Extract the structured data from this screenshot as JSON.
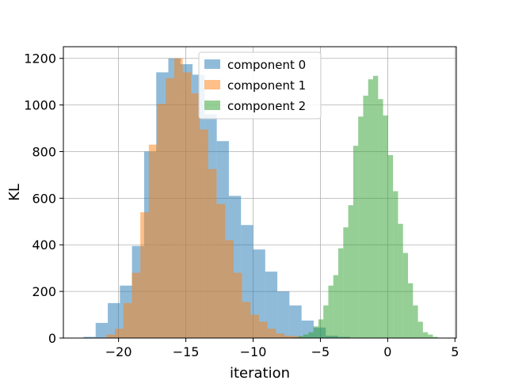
{
  "chart_data": {
    "type": "bar",
    "subtype": "overlaid-histogram",
    "title": "",
    "xlabel": "iteration",
    "ylabel": "KL",
    "xlim": [
      -24.1,
      5.1
    ],
    "ylim": [
      0,
      1250
    ],
    "xticks": [
      -20,
      -15,
      -10,
      -5,
      0,
      5
    ],
    "yticks": [
      0,
      200,
      400,
      600,
      800,
      1000,
      1200
    ],
    "grid": true,
    "legend_position": "top-center",
    "series": [
      {
        "name": "component 0",
        "color": "#1f77b4",
        "opacity": 0.5,
        "bin_width": 0.9,
        "bin_edges_start": -22.6,
        "values": [
          5,
          65,
          150,
          225,
          395,
          800,
          1140,
          1200,
          1175,
          1130,
          960,
          845,
          610,
          485,
          380,
          285,
          200,
          140,
          75,
          45,
          10,
          5
        ]
      },
      {
        "name": "component 1",
        "color": "#ff7f0e",
        "opacity": 0.5,
        "bin_width": 0.63,
        "bin_edges_start": -20.9,
        "values": [
          15,
          40,
          150,
          280,
          540,
          830,
          1005,
          1115,
          1200,
          1140,
          1050,
          895,
          725,
          575,
          420,
          280,
          155,
          100,
          70,
          40,
          20,
          10,
          8
        ]
      },
      {
        "name": "component 2",
        "color": "#2ca02c",
        "opacity": 0.5,
        "bin_width": 0.37,
        "bin_edges_start": -7.0,
        "values": [
          3,
          8,
          15,
          25,
          50,
          80,
          140,
          225,
          270,
          385,
          475,
          570,
          825,
          950,
          1040,
          1110,
          1125,
          1025,
          955,
          785,
          630,
          490,
          365,
          235,
          140,
          70,
          25,
          15,
          5
        ]
      }
    ]
  }
}
